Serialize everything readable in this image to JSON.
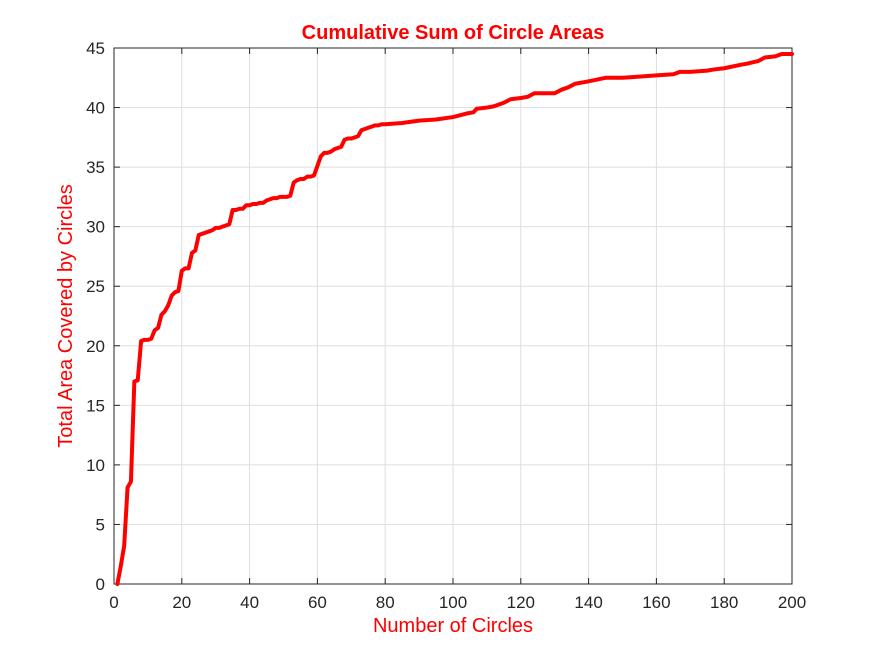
{
  "chart_data": {
    "type": "line",
    "title": "Cumulative Sum of Circle Areas",
    "xlabel": "Number of Circles",
    "ylabel": "Total Area Covered by Circles",
    "xlim": [
      0,
      200
    ],
    "ylim": [
      0,
      45
    ],
    "xticks": [
      0,
      20,
      40,
      60,
      80,
      100,
      120,
      140,
      160,
      180,
      200
    ],
    "yticks": [
      0,
      5,
      10,
      15,
      20,
      25,
      30,
      35,
      40,
      45
    ],
    "grid": true,
    "legend": "none",
    "colors": {
      "line": "#ff0000",
      "title": "#ff0000",
      "labels": "#ff0000",
      "grid": "#dedede",
      "axes": "#262626"
    },
    "series": [
      {
        "x": [
          1,
          2,
          3,
          4,
          5,
          6,
          7,
          8,
          9,
          10,
          11,
          12,
          13,
          14,
          15,
          16,
          17,
          18,
          19,
          20,
          21,
          22,
          23,
          24,
          25,
          26,
          27,
          28,
          29,
          30,
          31,
          32,
          33,
          34,
          35,
          36,
          37,
          38,
          39,
          40,
          41,
          42,
          43,
          44,
          45,
          46,
          47,
          48,
          49,
          50,
          51,
          52,
          53,
          54,
          55,
          56,
          57,
          58,
          59,
          60,
          61,
          62,
          63,
          64,
          65,
          66,
          67,
          68,
          69,
          70,
          71,
          72,
          73,
          74,
          75,
          76,
          77,
          78,
          79,
          80,
          85,
          90,
          95,
          100,
          104,
          106,
          107,
          110,
          112,
          115,
          117,
          120,
          122,
          124,
          126,
          130,
          132,
          134,
          136,
          138,
          140,
          145,
          150,
          155,
          160,
          165,
          167,
          170,
          175,
          177,
          180,
          185,
          187,
          190,
          192,
          195,
          197,
          200
        ],
        "y": [
          0,
          1.5,
          3.2,
          8.1,
          8.6,
          17.0,
          17.1,
          20.4,
          20.5,
          20.5,
          20.6,
          21.3,
          21.5,
          22.6,
          22.9,
          23.4,
          24.2,
          24.5,
          24.6,
          26.3,
          26.5,
          26.5,
          27.8,
          28.0,
          29.3,
          29.4,
          29.5,
          29.6,
          29.7,
          29.9,
          29.9,
          30.0,
          30.1,
          30.2,
          31.4,
          31.4,
          31.5,
          31.5,
          31.8,
          31.8,
          31.9,
          31.9,
          32.0,
          32.0,
          32.2,
          32.3,
          32.4,
          32.4,
          32.5,
          32.5,
          32.5,
          32.6,
          33.7,
          33.9,
          34.0,
          34.0,
          34.2,
          34.2,
          34.3,
          35.1,
          35.9,
          36.2,
          36.2,
          36.3,
          36.5,
          36.6,
          36.7,
          37.3,
          37.4,
          37.4,
          37.5,
          37.6,
          38.1,
          38.2,
          38.3,
          38.4,
          38.5,
          38.5,
          38.6,
          38.6,
          38.7,
          38.9,
          39.0,
          39.2,
          39.5,
          39.6,
          39.9,
          40.0,
          40.1,
          40.4,
          40.7,
          40.8,
          40.9,
          41.2,
          41.2,
          41.2,
          41.5,
          41.7,
          42.0,
          42.1,
          42.2,
          42.5,
          42.5,
          42.6,
          42.7,
          42.8,
          43.0,
          43.0,
          43.1,
          43.2,
          43.3,
          43.6,
          43.7,
          43.9,
          44.2,
          44.3,
          44.5,
          44.5
        ]
      }
    ]
  }
}
